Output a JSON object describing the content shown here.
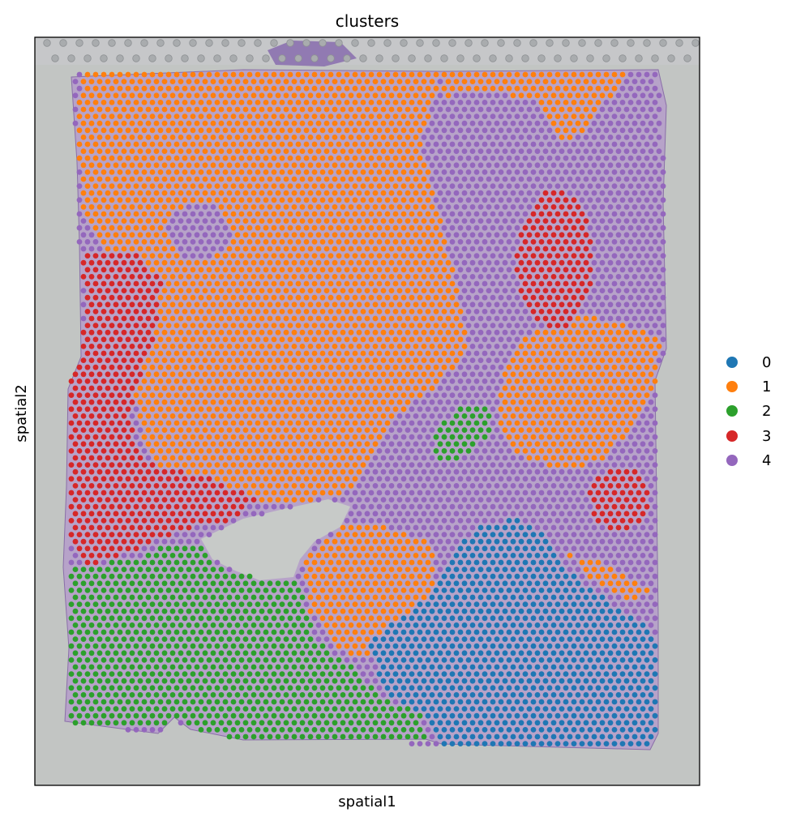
{
  "chart_data": {
    "type": "scatter",
    "title": "clusters",
    "xlabel": "spatial1",
    "ylabel": "spatial2",
    "x_ticks": [],
    "y_ticks": [],
    "background": "H&E tissue image with spatial spots overlaid",
    "legend": {
      "placement": "right",
      "entries": [
        {
          "name": "0",
          "color": "#1f77b4"
        },
        {
          "name": "1",
          "color": "#ff7f0e"
        },
        {
          "name": "2",
          "color": "#2ca02c"
        },
        {
          "name": "3",
          "color": "#d62728"
        },
        {
          "name": "4",
          "color": "#9467bd"
        }
      ]
    },
    "series": [
      {
        "name": "0",
        "color": "#1f77b4"
      },
      {
        "name": "1",
        "color": "#ff7f0e"
      },
      {
        "name": "2",
        "color": "#2ca02c"
      },
      {
        "name": "3",
        "color": "#d62728"
      },
      {
        "name": "4",
        "color": "#9467bd"
      }
    ]
  }
}
